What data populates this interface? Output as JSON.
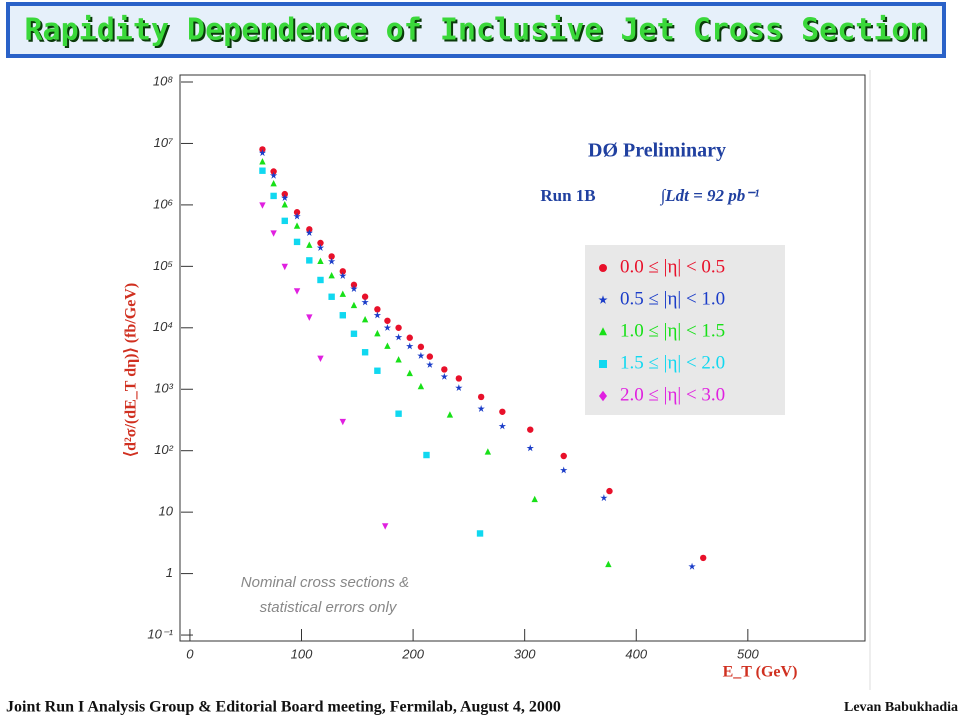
{
  "header": {
    "title": "Rapidity Dependence of Inclusive Jet Cross Section"
  },
  "footer": {
    "left": "Joint Run I Analysis Group & Editorial Board meeting, Fermilab, August 4, 2000",
    "right": "Levan Babukhadia"
  },
  "chart_data": {
    "type": "scatter",
    "annotations": {
      "experiment": "DØ Preliminary",
      "run": "Run 1B",
      "lumi": "∫Ldt = 92 pb⁻¹",
      "note": [
        "Nominal cross sections &",
        "statistical errors only"
      ]
    },
    "x_label": "E_T (GeV)",
    "y_label": "⟨d²σ/(dE_T dη)⟩ (fb/GeV)",
    "xlim": [
      -8,
      605
    ],
    "xticks": [
      0,
      100,
      200,
      300,
      400,
      500
    ],
    "ylim": [
      0.08,
      130000000
    ],
    "log_y": true,
    "yticks": [
      {
        "value": 0.1,
        "label": "10⁻¹"
      },
      1,
      10,
      {
        "value": 100,
        "label": "10²"
      },
      {
        "value": 1000,
        "label": "10³"
      },
      {
        "value": 10000,
        "label": "10⁴"
      },
      {
        "value": 100000,
        "label": "10⁵"
      },
      {
        "value": 1000000,
        "label": "10⁶"
      },
      {
        "value": 10000000,
        "label": "10⁷"
      },
      {
        "value": 100000000,
        "label": "10⁸"
      }
    ],
    "series": [
      {
        "name": "0.0 ≤ |η| < 0.5",
        "color": "#e8102a",
        "marker": "circle",
        "x": [
          65,
          75,
          85,
          96,
          107,
          117,
          127,
          137,
          147,
          157,
          168,
          177,
          187,
          197,
          207,
          215,
          228,
          241,
          261,
          280,
          305,
          335,
          376,
          460
        ],
        "values": [
          8000000,
          3500000,
          1500000,
          760000,
          400000,
          240000,
          145000,
          83000,
          50000,
          32000,
          20000,
          13000,
          10000,
          6900,
          4900,
          3400,
          2100,
          1500,
          750,
          430,
          220,
          82,
          22,
          1.8
        ]
      },
      {
        "name": "0.5 ≤ |η| < 1.0",
        "color": "#1a3cc8",
        "marker": "star",
        "x": [
          65,
          75,
          85,
          96,
          107,
          117,
          127,
          137,
          147,
          157,
          168,
          177,
          187,
          197,
          207,
          215,
          228,
          241,
          261,
          280,
          305,
          335,
          371,
          450
        ],
        "values": [
          7000000,
          3000000,
          1300000,
          650000,
          350000,
          200000,
          120000,
          70000,
          43000,
          26000,
          16000,
          10000,
          7000,
          5000,
          3500,
          2500,
          1600,
          1050,
          480,
          250,
          110,
          48,
          17,
          1.3
        ]
      },
      {
        "name": "1.0 ≤ |η| < 1.5",
        "color": "#18e018",
        "marker": "triangle",
        "x": [
          65,
          75,
          85,
          96,
          107,
          117,
          127,
          137,
          147,
          157,
          168,
          177,
          187,
          197,
          207,
          233,
          267,
          309,
          375
        ],
        "values": [
          5000000,
          2200000,
          1000000,
          450000,
          220000,
          120000,
          70000,
          35000,
          23000,
          13500,
          8000,
          5000,
          3000,
          1800,
          1100,
          380,
          95,
          16,
          1.4
        ]
      },
      {
        "name": "1.5 ≤ |η| < 2.0",
        "color": "#10d8f0",
        "marker": "square",
        "x": [
          65,
          75,
          85,
          96,
          107,
          117,
          127,
          137,
          147,
          157,
          168,
          187,
          212,
          260
        ],
        "values": [
          3600000,
          1400000,
          550000,
          250000,
          125000,
          60000,
          32000,
          16000,
          8000,
          4000,
          2000,
          400,
          85,
          4.5
        ]
      },
      {
        "name": "2.0 ≤ |η| < 3.0",
        "color": "#e020e0",
        "marker": "down",
        "x": [
          65,
          75,
          85,
          96,
          107,
          117,
          137,
          175
        ],
        "values": [
          1000000,
          350000,
          100000,
          40000,
          15000,
          3200,
          300,
          6
        ]
      }
    ]
  }
}
